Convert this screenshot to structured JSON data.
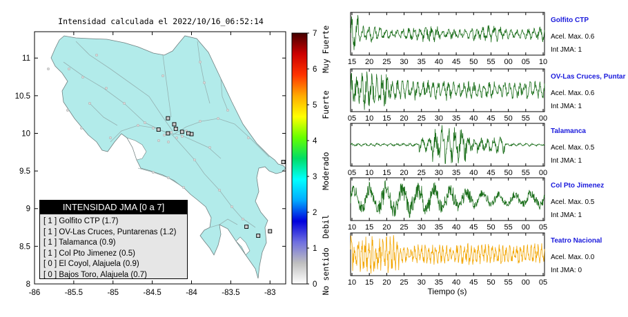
{
  "map": {
    "title": "Intensidad calculada el 2022/10/16_06:52:14",
    "x_ticks": [
      "-86",
      "-85.5",
      "-85",
      "-84.5",
      "-84",
      "-83.5",
      "-83"
    ],
    "y_ticks": [
      "11",
      "10.5",
      "10",
      "9.5",
      "9",
      "8.5",
      "8"
    ],
    "land_color": "#b2ebea",
    "xlim": [
      -86,
      -82.8
    ],
    "ylim": [
      8,
      11.35
    ]
  },
  "stations": [
    {
      "lon": -84.42,
      "lat": 10.05
    },
    {
      "lon": -84.3,
      "lat": 10.2
    },
    {
      "lon": -84.22,
      "lat": 10.12
    },
    {
      "lon": -84.2,
      "lat": 10.06
    },
    {
      "lon": -84.3,
      "lat": 10.0
    },
    {
      "lon": -84.12,
      "lat": 10.02
    },
    {
      "lon": -84.0,
      "lat": 9.99
    },
    {
      "lon": -84.04,
      "lat": 10.0
    },
    {
      "lon": -83.15,
      "lat": 8.64
    },
    {
      "lon": -83.0,
      "lat": 8.7
    },
    {
      "lon": -83.3,
      "lat": 8.76
    },
    {
      "lon": -82.83,
      "lat": 9.62
    }
  ],
  "colorbar": {
    "ticks": [
      "0",
      "1",
      "2",
      "3",
      "4",
      "5",
      "6",
      "7"
    ],
    "labels": [
      "No sentido",
      "Debil",
      "Moderado",
      "Fuerte",
      "Muy Fuerte"
    ],
    "colors": [
      "#ffffff",
      "#bfbfbf",
      "#6f6fe0",
      "#0000dd",
      "#00aaff",
      "#00ffff",
      "#00dd66",
      "#66ff00",
      "#ffff00",
      "#ffaa00",
      "#ff3300",
      "#cc0000",
      "#440000"
    ]
  },
  "legend": {
    "title": "INTENSIDAD JMA [0 a 7]",
    "items": [
      "[ 1 ]  Golfito CTP (1.7)",
      "[ 1 ]  OV-Las Cruces, Puntarenas (1.2)",
      "[ 1 ]  Talamanca (0.9)",
      "[ 1 ]  Col Pto Jimenez (0.5)",
      "[ 0 ]  El Coyol, Alajuela (0.9)",
      "[ 0 ]  Bajos Toro, Alajuela (0.7)"
    ]
  },
  "seismograms": [
    {
      "station": "Golfito CTP",
      "acel_label": "Acel. Max. 0.6",
      "int_label": "Int JMA: 1",
      "color": "#1a6e1a",
      "ticks": [
        "15",
        "20",
        "25",
        "30",
        "35",
        "40",
        "45",
        "50",
        "55",
        "00",
        "05",
        "10"
      ]
    },
    {
      "station": "OV-Las Cruces, Puntar",
      "acel_label": "Acel. Max. 0.6",
      "int_label": "Int JMA: 1",
      "color": "#1a6e1a",
      "ticks": [
        "05",
        "10",
        "15",
        "20",
        "25",
        "30",
        "35",
        "40",
        "45",
        "50",
        "55",
        "00"
      ]
    },
    {
      "station": "Talamanca",
      "acel_label": "Acel. Max. 0.5",
      "int_label": "Int JMA: 1",
      "color": "#1a6e1a",
      "ticks": [
        "05",
        "10",
        "15",
        "20",
        "25",
        "30",
        "35",
        "40",
        "45",
        "50",
        "55",
        "00"
      ]
    },
    {
      "station": "Col Pto Jimenez",
      "acel_label": "Acel. Max. 0.5",
      "int_label": "Int JMA: 1",
      "color": "#1a6e1a",
      "ticks": [
        "10",
        "15",
        "20",
        "25",
        "30",
        "35",
        "40",
        "45",
        "50",
        "55",
        "00",
        "05"
      ]
    },
    {
      "station": "Teatro Nacional",
      "acel_label": "Acel. Max. 0.0",
      "int_label": "Int JMA: 0",
      "color": "#f2a500",
      "ticks": [
        "10",
        "15",
        "20",
        "25",
        "30",
        "35",
        "40",
        "45",
        "50",
        "55",
        "00",
        "05"
      ]
    }
  ],
  "seismo_xlabel": "Tiempo (s)",
  "chart_data": [
    {
      "type": "scatter",
      "title": "Intensidad calculada el 2022/10/16_06:52:14",
      "xlabel": "",
      "ylabel": "",
      "xlim": [
        -86,
        -82.8
      ],
      "ylim": [
        8,
        11.35
      ],
      "legend": "bottom-left",
      "colorbar": {
        "min": 0,
        "max": 7,
        "labels": [
          "No sentido",
          "Debil",
          "Moderado",
          "Fuerte",
          "Muy Fuerte"
        ]
      },
      "series": [
        {
          "values": [
            {
              "station": "Golfito CTP",
              "intensity": 1,
              "value": 1.7
            },
            {
              "station": "OV-Las Cruces, Puntarenas",
              "intensity": 1,
              "value": 1.2
            },
            {
              "station": "Talamanca",
              "intensity": 1,
              "value": 0.9
            },
            {
              "station": "Col Pto Jimenez",
              "intensity": 1,
              "value": 0.5
            },
            {
              "station": "El Coyol, Alajuela",
              "intensity": 0,
              "value": 0.9
            },
            {
              "station": "Bajos Toro, Alajuela",
              "intensity": 0,
              "value": 0.7
            }
          ]
        }
      ]
    },
    {
      "type": "line",
      "xlabel": "Tiempo (s)",
      "series": [
        {
          "name": "Golfito CTP",
          "acel_max": 0.6,
          "int_jma": 1
        },
        {
          "name": "OV-Las Cruces, Puntar",
          "acel_max": 0.6,
          "int_jma": 1
        },
        {
          "name": "Talamanca",
          "acel_max": 0.5,
          "int_jma": 1
        },
        {
          "name": "Col Pto Jimenez",
          "acel_max": 0.5,
          "int_jma": 1
        },
        {
          "name": "Teatro Nacional",
          "acel_max": 0.0,
          "int_jma": 0
        }
      ]
    }
  ]
}
